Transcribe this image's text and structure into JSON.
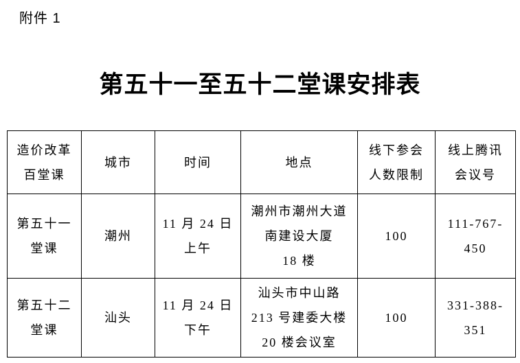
{
  "page": {
    "attachment_label": "附件 1",
    "title": "第五十一至五十二堂课安排表"
  },
  "table": {
    "headers": [
      [
        "造价改革",
        "百堂课"
      ],
      [
        "城市"
      ],
      [
        "时间"
      ],
      [
        "地点"
      ],
      [
        "线下参会",
        "人数限制"
      ],
      [
        "线上腾讯",
        "会议号"
      ]
    ],
    "rows": [
      [
        [
          "第五十一",
          "堂课"
        ],
        [
          "潮州"
        ],
        [
          "11 月 24 日",
          "上午"
        ],
        [
          "潮州市潮州大道",
          "南建设大厦",
          "18 楼"
        ],
        [
          "100"
        ],
        [
          "111-767-",
          "450"
        ]
      ],
      [
        [
          "第五十二",
          "堂课"
        ],
        [
          "汕头"
        ],
        [
          "11 月 24 日",
          "下午"
        ],
        [
          "汕头市中山路",
          "213 号建委大楼",
          "20 楼会议室"
        ],
        [
          "100"
        ],
        [
          "331-388-",
          "351"
        ]
      ]
    ]
  }
}
